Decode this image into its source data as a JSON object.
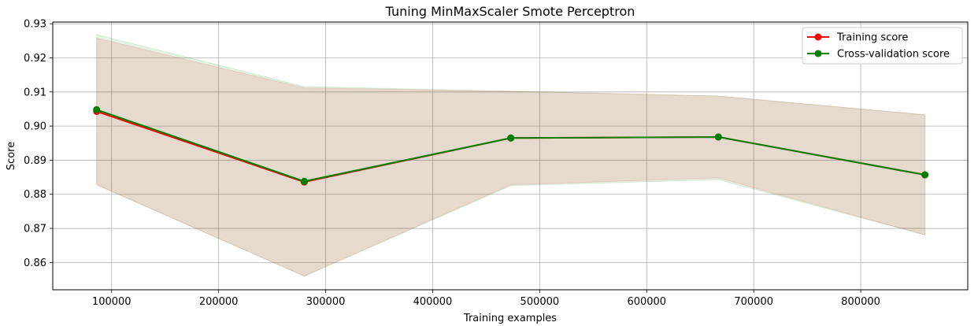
{
  "chart_data": {
    "type": "line",
    "title": "Tuning MinMaxScaler Smote Perceptron",
    "xlabel": "Training examples",
    "ylabel": "Score",
    "xlim": [
      45000,
      900000
    ],
    "ylim": [
      0.852,
      0.9305
    ],
    "xticks": [
      100000,
      200000,
      300000,
      400000,
      500000,
      600000,
      700000,
      800000
    ],
    "yticks": [
      0.86,
      0.87,
      0.88,
      0.89,
      0.9,
      0.91,
      0.92,
      0.93
    ],
    "grid": true,
    "legend_position": "top-right",
    "x": [
      86000,
      280000,
      473000,
      667000,
      860000
    ],
    "series": [
      {
        "name": "Training score",
        "color": "#ff0000",
        "values": [
          0.9043,
          0.8836,
          0.8965,
          0.8968,
          0.8857
        ],
        "band_upper": [
          0.9258,
          0.9112,
          0.9102,
          0.9088,
          0.9033
        ],
        "band_lower": [
          0.8828,
          0.856,
          0.8828,
          0.8848,
          0.8681
        ]
      },
      {
        "name": "Cross-validation score",
        "color": "#008000",
        "values": [
          0.9048,
          0.8838,
          0.8965,
          0.8968,
          0.8857
        ],
        "band_upper": [
          0.9268,
          0.9116,
          0.9102,
          0.9088,
          0.9033
        ],
        "band_lower": [
          0.8828,
          0.856,
          0.8825,
          0.8843,
          0.8681
        ]
      }
    ]
  }
}
